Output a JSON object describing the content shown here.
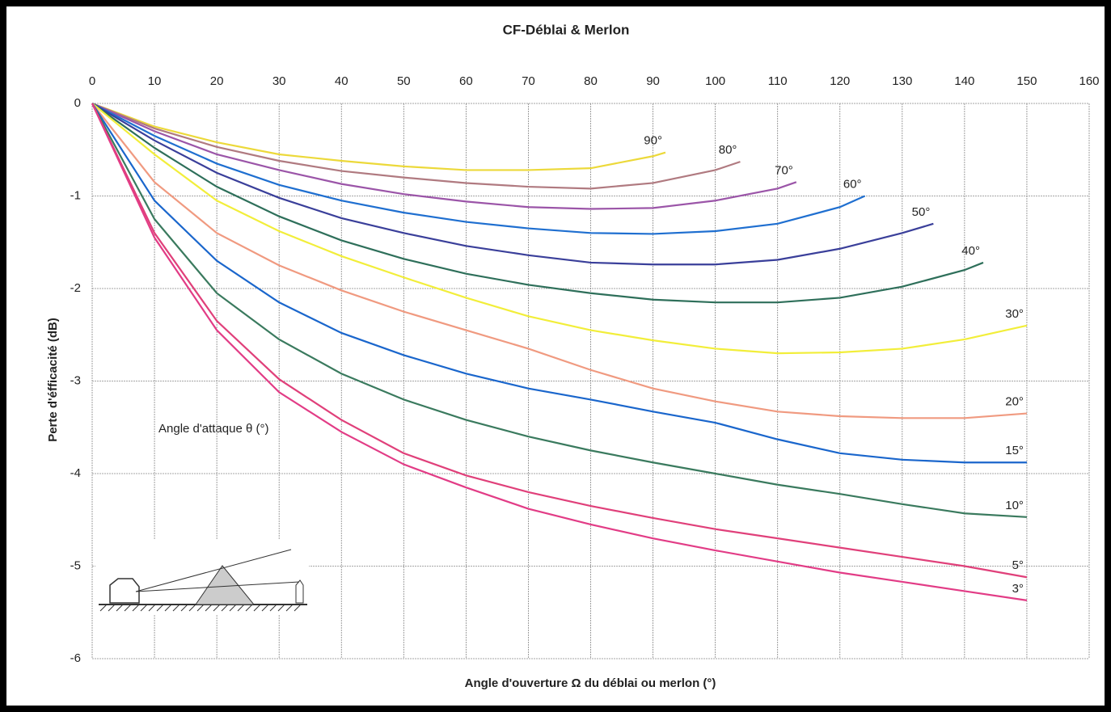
{
  "chart_data": {
    "type": "line",
    "title": "CF-Déblai & Merlon",
    "x_label": "Angle d'ouverture Ω du déblai ou merlon (°)",
    "y_label": "Perte d'éfficacité (dB)",
    "annotation": "Angle d'attaque θ (°)",
    "xlim": [
      0,
      160
    ],
    "ylim": [
      -6,
      0
    ],
    "xticks": [
      0,
      10,
      20,
      30,
      40,
      50,
      60,
      70,
      80,
      90,
      100,
      110,
      120,
      130,
      140,
      150,
      160
    ],
    "yticks": [
      0,
      -1,
      -2,
      -3,
      -4,
      -5,
      -6
    ],
    "grid": true,
    "series": [
      {
        "name": "90°",
        "color": "#ecd93a",
        "x": [
          0,
          10,
          20,
          30,
          40,
          50,
          60,
          70,
          80,
          90,
          92
        ],
        "values": [
          0,
          -0.25,
          -0.42,
          -0.55,
          -0.62,
          -0.68,
          -0.72,
          -0.72,
          -0.7,
          -0.57,
          -0.53
        ]
      },
      {
        "name": "80°",
        "color": "#b07a80",
        "x": [
          0,
          10,
          20,
          30,
          40,
          50,
          60,
          70,
          80,
          90,
          100,
          104
        ],
        "values": [
          0,
          -0.27,
          -0.47,
          -0.62,
          -0.73,
          -0.8,
          -0.86,
          -0.9,
          -0.92,
          -0.86,
          -0.72,
          -0.63
        ]
      },
      {
        "name": "70°",
        "color": "#9b55a8",
        "x": [
          0,
          10,
          20,
          30,
          40,
          50,
          60,
          70,
          80,
          90,
          100,
          110,
          113
        ],
        "values": [
          0,
          -0.3,
          -0.55,
          -0.72,
          -0.87,
          -0.98,
          -1.06,
          -1.12,
          -1.14,
          -1.13,
          -1.05,
          -0.92,
          -0.85
        ]
      },
      {
        "name": "60°",
        "color": "#1f6fd0",
        "x": [
          0,
          10,
          20,
          30,
          40,
          50,
          60,
          70,
          80,
          90,
          100,
          110,
          120,
          124
        ],
        "values": [
          0,
          -0.35,
          -0.65,
          -0.88,
          -1.05,
          -1.18,
          -1.28,
          -1.35,
          -1.4,
          -1.41,
          -1.38,
          -1.3,
          -1.12,
          -1.0
        ]
      },
      {
        "name": "50°",
        "color": "#3a3f9a",
        "x": [
          0,
          10,
          20,
          30,
          40,
          50,
          60,
          70,
          80,
          90,
          100,
          110,
          120,
          130,
          135
        ],
        "values": [
          0,
          -0.4,
          -0.75,
          -1.02,
          -1.24,
          -1.4,
          -1.54,
          -1.64,
          -1.72,
          -1.74,
          -1.74,
          -1.69,
          -1.57,
          -1.4,
          -1.3
        ]
      },
      {
        "name": "40°",
        "color": "#2e6f5a",
        "x": [
          0,
          10,
          20,
          30,
          40,
          50,
          60,
          70,
          80,
          90,
          100,
          110,
          120,
          130,
          140,
          143
        ],
        "values": [
          0,
          -0.48,
          -0.9,
          -1.22,
          -1.48,
          -1.68,
          -1.84,
          -1.96,
          -2.05,
          -2.12,
          -2.15,
          -2.15,
          -2.1,
          -1.98,
          -1.8,
          -1.72
        ]
      },
      {
        "name": "30°",
        "color": "#f2ee3a",
        "x": [
          0,
          10,
          20,
          30,
          40,
          50,
          60,
          70,
          80,
          90,
          100,
          110,
          120,
          130,
          140,
          150
        ],
        "values": [
          0,
          -0.55,
          -1.05,
          -1.38,
          -1.65,
          -1.88,
          -2.1,
          -2.3,
          -2.45,
          -2.56,
          -2.65,
          -2.7,
          -2.69,
          -2.65,
          -2.55,
          -2.4
        ]
      },
      {
        "name": "20°",
        "color": "#f09a80",
        "x": [
          0,
          10,
          20,
          30,
          40,
          50,
          60,
          70,
          80,
          90,
          100,
          110,
          120,
          130,
          140,
          150
        ],
        "values": [
          0,
          -0.85,
          -1.4,
          -1.75,
          -2.02,
          -2.25,
          -2.45,
          -2.65,
          -2.88,
          -3.08,
          -3.22,
          -3.33,
          -3.38,
          -3.4,
          -3.4,
          -3.35
        ]
      },
      {
        "name": "15°",
        "color": "#1a66cc",
        "x": [
          0,
          10,
          20,
          30,
          40,
          50,
          60,
          70,
          80,
          90,
          100,
          110,
          120,
          130,
          140,
          150
        ],
        "values": [
          0,
          -1.05,
          -1.7,
          -2.15,
          -2.48,
          -2.72,
          -2.92,
          -3.08,
          -3.2,
          -3.33,
          -3.45,
          -3.63,
          -3.78,
          -3.85,
          -3.88,
          -3.88
        ]
      },
      {
        "name": "10°",
        "color": "#3a7a5e",
        "x": [
          0,
          10,
          20,
          30,
          40,
          50,
          60,
          70,
          80,
          90,
          100,
          110,
          120,
          130,
          140,
          150
        ],
        "values": [
          0,
          -1.25,
          -2.05,
          -2.55,
          -2.92,
          -3.2,
          -3.42,
          -3.6,
          -3.75,
          -3.88,
          -4.0,
          -4.12,
          -4.22,
          -4.33,
          -4.43,
          -4.47
        ]
      },
      {
        "name": "5°",
        "color": "#e0407a",
        "x": [
          0,
          10,
          20,
          30,
          40,
          50,
          60,
          70,
          80,
          90,
          100,
          110,
          120,
          130,
          140,
          150
        ],
        "values": [
          0,
          -1.4,
          -2.35,
          -2.98,
          -3.42,
          -3.78,
          -4.02,
          -4.2,
          -4.35,
          -4.48,
          -4.6,
          -4.7,
          -4.8,
          -4.9,
          -5.0,
          -5.12
        ]
      },
      {
        "name": "3°",
        "color": "#e23c86",
        "x": [
          0,
          10,
          20,
          30,
          40,
          50,
          60,
          70,
          80,
          90,
          100,
          110,
          120,
          130,
          140,
          150
        ],
        "values": [
          0,
          -1.45,
          -2.45,
          -3.12,
          -3.55,
          -3.9,
          -4.15,
          -4.38,
          -4.55,
          -4.7,
          -4.83,
          -4.95,
          -5.07,
          -5.17,
          -5.27,
          -5.37
        ]
      }
    ]
  }
}
